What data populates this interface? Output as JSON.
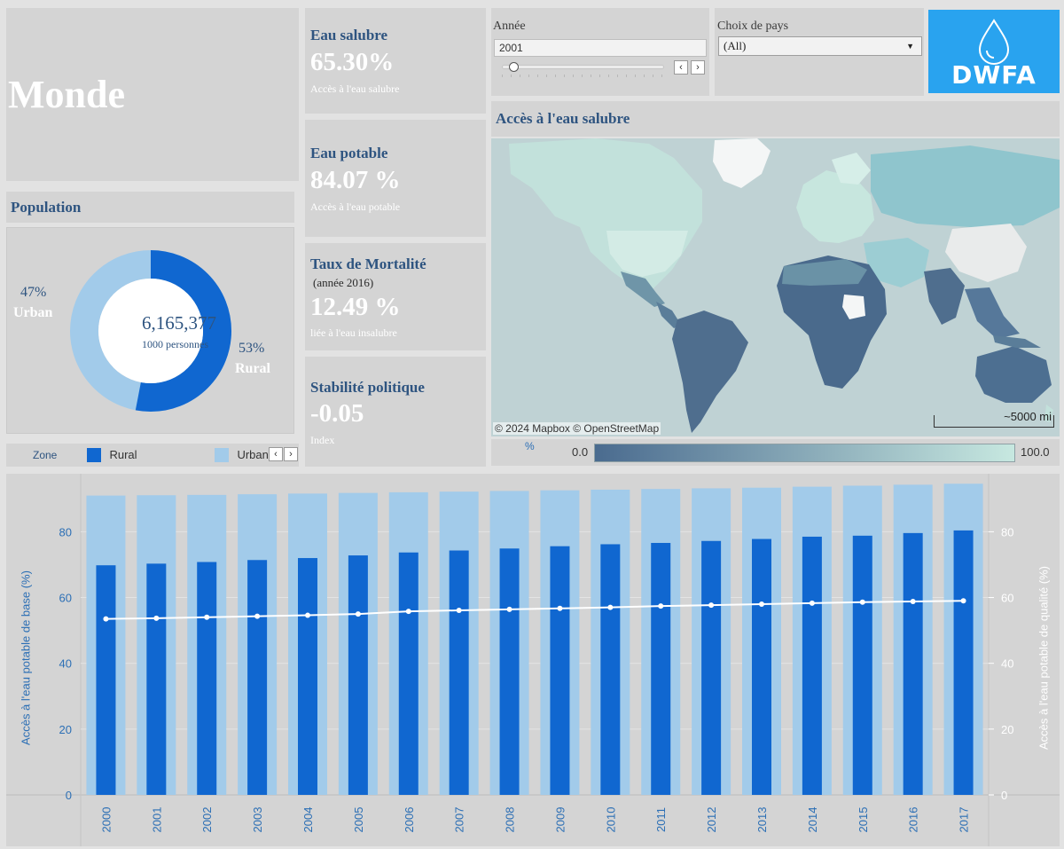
{
  "region": "Monde",
  "kpis": {
    "salubre": {
      "title": "Eau salubre",
      "value": "65.30%",
      "sub": "Accès à l'eau salubre"
    },
    "potable": {
      "title": "Eau potable",
      "value": "84.07 %",
      "sub": "Accès à l'eau potable"
    },
    "mortalite": {
      "title": "Taux de Mortalité",
      "note": "(année 2016)",
      "value": "12.49 %",
      "sub": "liée à l'eau insalubre"
    },
    "stabilite": {
      "title": "Stabilité politique",
      "value": "-0.05",
      "sub": "Index"
    }
  },
  "filters": {
    "annee": {
      "label": "Année",
      "value": "2001",
      "slider_position": 0.07
    },
    "pays": {
      "label": "Choix de pays",
      "value": "(All)"
    }
  },
  "logo": {
    "text": "DWFA",
    "color": "#29a3ef"
  },
  "population": {
    "title": "Population",
    "total": "6,165,377",
    "unit": "1000 personnes",
    "urban_pct": "47%",
    "urban_label": "Urban",
    "rural_pct": "53%",
    "rural_label": "Rural",
    "rural_share": 0.53,
    "colors": {
      "rural": "#1067d0",
      "urban": "#a2cbea"
    }
  },
  "map": {
    "title": "Accès à l'eau salubre",
    "attribution": "© 2024 Mapbox  © OpenStreetMap",
    "scale": "~5000 mi",
    "legend_unit": "%",
    "legend_min": "0.0",
    "legend_max": "100.0",
    "colors": {
      "low": "#4a6b8f",
      "high": "#c7e8e0",
      "ocean": "#bfd2d4"
    }
  },
  "legend": {
    "title": "Zone",
    "items": [
      {
        "label": "Rural",
        "color": "#1067d0"
      },
      {
        "label": "Urban",
        "color": "#a2cbea"
      }
    ]
  },
  "chart_data": {
    "type": "bar",
    "categories": [
      "2000",
      "2001",
      "2002",
      "2003",
      "2004",
      "2005",
      "2006",
      "2007",
      "2008",
      "2009",
      "2010",
      "2011",
      "2012",
      "2013",
      "2014",
      "2015",
      "2016",
      "2017"
    ],
    "series": [
      {
        "name": "Urban",
        "type": "bar",
        "axis": "left",
        "values": [
          91.0,
          91.1,
          91.2,
          91.4,
          91.6,
          91.8,
          92.0,
          92.2,
          92.4,
          92.6,
          92.8,
          93.0,
          93.2,
          93.4,
          93.7,
          94.0,
          94.3,
          94.6
        ]
      },
      {
        "name": "Rural",
        "type": "bar",
        "axis": "left",
        "values": [
          69.8,
          70.3,
          70.8,
          71.4,
          72.0,
          72.8,
          73.7,
          74.3,
          74.9,
          75.6,
          76.2,
          76.6,
          77.2,
          77.8,
          78.5,
          78.8,
          79.6,
          80.4
        ]
      },
      {
        "type": "line",
        "axis": "right",
        "values": [
          53.5,
          53.7,
          54.0,
          54.3,
          54.6,
          55.0,
          55.8,
          56.1,
          56.4,
          56.7,
          57.0,
          57.4,
          57.7,
          58.0,
          58.3,
          58.6,
          58.8,
          59.0
        ]
      }
    ],
    "ylabel": "Accès à l'eau potable de base (%)",
    "y2label": "Accès à l'eau potable de qualité (%)",
    "ylim": [
      0,
      95
    ],
    "y2lim": [
      0,
      95
    ],
    "yticks": [
      0,
      20,
      40,
      60,
      80
    ],
    "grid": true
  }
}
